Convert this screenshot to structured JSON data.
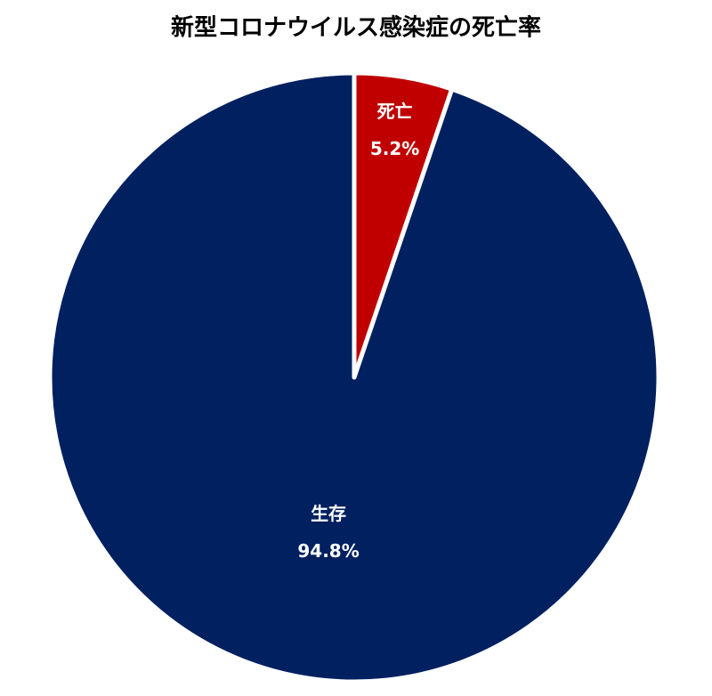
{
  "chart_data": {
    "type": "pie",
    "title": "新型コロナウイルス感染症の死亡率",
    "categories": [
      "死亡",
      "生存"
    ],
    "values": [
      5.2,
      94.8
    ],
    "value_labels": [
      "5.2%",
      "94.8%"
    ],
    "colors": [
      "#c00000",
      "#002060"
    ]
  }
}
